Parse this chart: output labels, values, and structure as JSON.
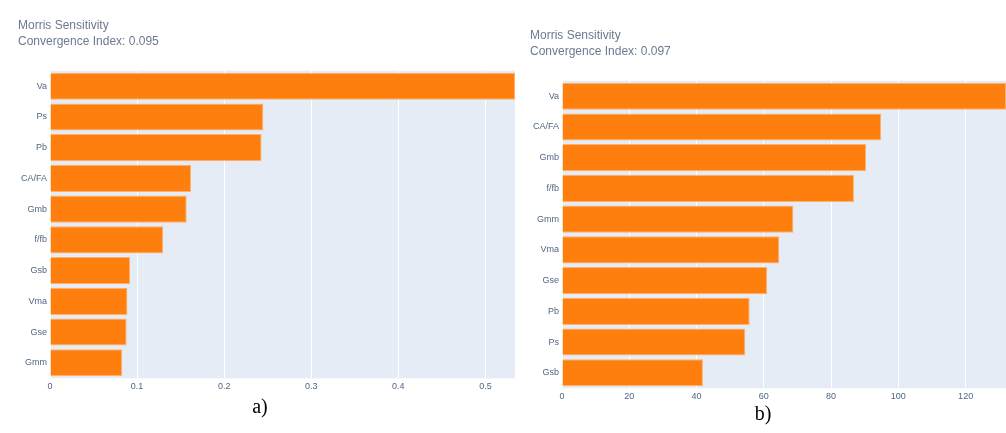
{
  "chart_data": [
    {
      "type": "bar",
      "orientation": "horizontal",
      "title": "Morris Sensitivity",
      "subtitle": "Convergence Index: 0.095",
      "categories": [
        "Va",
        "Ps",
        "Pb",
        "CA/FA",
        "Gmb",
        "f/fb",
        "Gsb",
        "Vma",
        "Gse",
        "Gmm"
      ],
      "values": [
        0.534,
        0.245,
        0.243,
        0.162,
        0.157,
        0.13,
        0.092,
        0.089,
        0.088,
        0.083
      ],
      "color": "#ff7f0e",
      "xlim": [
        0,
        0.534
      ],
      "xticks": [
        0,
        0.1,
        0.2,
        0.3,
        0.4,
        0.5
      ],
      "grid": "x",
      "annotations": [
        "a)"
      ]
    },
    {
      "type": "bar",
      "orientation": "horizontal",
      "title": "Morris Sensitivity",
      "subtitle": "Convergence Index: 0.097",
      "categories": [
        "Va",
        "CA/FA",
        "Gmb",
        "f/fb",
        "Gmm",
        "Vma",
        "Gse",
        "Pb",
        "Ps",
        "Gsb"
      ],
      "values": [
        132,
        94.9,
        90.4,
        86.8,
        68.8,
        64.6,
        61,
        55.8,
        54.5,
        41.9
      ],
      "color": "#ff7f0e",
      "xlim": [
        0,
        132
      ],
      "xticks": [
        0,
        20,
        40,
        60,
        80,
        100,
        120
      ],
      "grid": "x",
      "annotations": [
        "b)"
      ]
    }
  ]
}
